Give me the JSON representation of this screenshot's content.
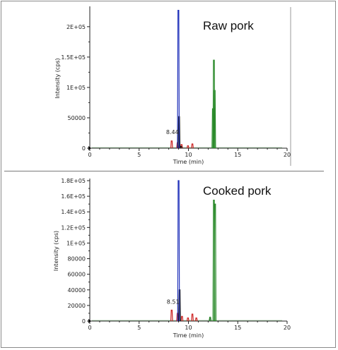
{
  "colors": {
    "blue": "#2233bb",
    "green": "#2a8a2a",
    "red": "#cc2222",
    "black": "#111111",
    "axis": "#222222",
    "frame": "#8a8a8a"
  },
  "chart_data": [
    {
      "type": "line",
      "title": "Raw pork",
      "xlabel": "Time (min)",
      "ylabel": "Intensity (cps)",
      "xlim": [
        0,
        20
      ],
      "ylim": [
        0,
        230000
      ],
      "xticks": [
        0,
        5,
        10,
        15,
        20
      ],
      "yticks": [
        {
          "v": 0,
          "label": "0"
        },
        {
          "v": 50000,
          "label": "50000"
        },
        {
          "v": 100000,
          "label": "1E+05"
        },
        {
          "v": 150000,
          "label": "1.5E+05"
        },
        {
          "v": 200000,
          "label": "2E+05"
        }
      ],
      "annotations": [
        {
          "x": 8.44,
          "y": 14000,
          "text": "8.44"
        }
      ],
      "series": [
        {
          "color": "red",
          "peaks": [
            [
              8.3,
              12000
            ],
            [
              8.9,
              9000
            ],
            [
              9.3,
              6000
            ],
            [
              9.95,
              4000
            ],
            [
              10.4,
              7000
            ]
          ]
        },
        {
          "color": "black",
          "peaks": [
            [
              9.05,
              52000
            ],
            [
              9.25,
              3000
            ]
          ]
        },
        {
          "color": "blue",
          "peaks": [
            [
              8.98,
              227000
            ]
          ]
        },
        {
          "color": "green",
          "peaks": [
            [
              12.48,
              65000
            ],
            [
              12.58,
              145000
            ],
            [
              12.66,
              95000
            ]
          ]
        }
      ]
    },
    {
      "type": "line",
      "title": "Cooked pork",
      "xlabel": "Time (min)",
      "ylabel": "Intensity (cps)",
      "xlim": [
        0,
        20
      ],
      "ylim": [
        0,
        180000
      ],
      "xticks": [
        0,
        5,
        10,
        15,
        20
      ],
      "yticks": [
        {
          "v": 0,
          "label": "0"
        },
        {
          "v": 20000,
          "label": "20000"
        },
        {
          "v": 40000,
          "label": "40000"
        },
        {
          "v": 60000,
          "label": "60000"
        },
        {
          "v": 80000,
          "label": "80000"
        },
        {
          "v": 100000,
          "label": "1E+05"
        },
        {
          "v": 120000,
          "label": "1.2E+05"
        },
        {
          "v": 140000,
          "label": "1.4E+05"
        },
        {
          "v": 160000,
          "label": "1.6E+05"
        },
        {
          "v": 180000,
          "label": "1.8E+05"
        }
      ],
      "annotations": [
        {
          "x": 8.51,
          "y": 15000,
          "text": "8.51"
        }
      ],
      "series": [
        {
          "color": "red",
          "peaks": [
            [
              8.3,
              14000
            ],
            [
              8.9,
              10000
            ],
            [
              9.35,
              6000
            ],
            [
              9.95,
              4000
            ],
            [
              10.4,
              9000
            ],
            [
              10.8,
              4000
            ]
          ]
        },
        {
          "color": "black",
          "peaks": [
            [
              9.1,
              40000
            ],
            [
              12.2,
              3000
            ]
          ]
        },
        {
          "color": "blue",
          "peaks": [
            [
              9.0,
              180000
            ]
          ]
        },
        {
          "color": "green",
          "peaks": [
            [
              12.2,
              5000
            ],
            [
              12.58,
              155000
            ],
            [
              12.7,
              150000
            ]
          ]
        }
      ]
    }
  ]
}
